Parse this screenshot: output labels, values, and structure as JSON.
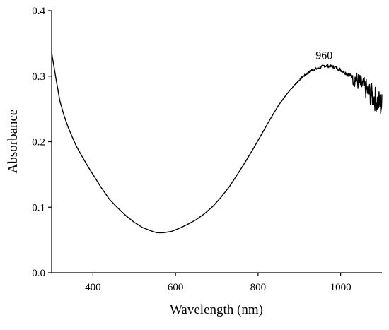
{
  "chart_data": {
    "type": "line",
    "xlabel": "Wavelength (nm)",
    "ylabel": "Absorbance",
    "xlim": [
      300,
      1100
    ],
    "ylim": [
      0.0,
      0.4
    ],
    "x_ticks": [
      400,
      600,
      800,
      1000
    ],
    "x_tick_labels": [
      "400",
      "600",
      "800",
      "1000"
    ],
    "y_ticks": [
      0.0,
      0.1,
      0.2,
      0.3,
      0.4
    ],
    "y_tick_labels": [
      "0.0",
      "0.1",
      "0.2",
      "0.3",
      "0.4"
    ],
    "grid": false,
    "line_color": "#000000",
    "series": [
      {
        "x": [
          300,
          310,
          320,
          330,
          340,
          350,
          360,
          375,
          390,
          400,
          420,
          440,
          460,
          480,
          500,
          520,
          540,
          555,
          570,
          590,
          610,
          630,
          650,
          670,
          690,
          710,
          730,
          750,
          770,
          790,
          810,
          830,
          850,
          870,
          890,
          910,
          930,
          950,
          960,
          975,
          990,
          1005,
          1020,
          1035,
          1050,
          1060,
          1070,
          1080,
          1090,
          1100
        ],
        "y": [
          0.336,
          0.298,
          0.262,
          0.24,
          0.222,
          0.207,
          0.193,
          0.176,
          0.16,
          0.15,
          0.13,
          0.112,
          0.099,
          0.087,
          0.077,
          0.069,
          0.064,
          0.061,
          0.061,
          0.063,
          0.068,
          0.074,
          0.081,
          0.09,
          0.101,
          0.115,
          0.131,
          0.15,
          0.17,
          0.191,
          0.213,
          0.235,
          0.256,
          0.273,
          0.288,
          0.3,
          0.309,
          0.313,
          0.316,
          0.315,
          0.313,
          0.308,
          0.302,
          0.296,
          0.287,
          0.281,
          0.274,
          0.268,
          0.261,
          0.255
        ]
      }
    ],
    "noise_start_x": 1030,
    "annotations": [
      {
        "text": "960",
        "x": 960,
        "y": 0.326
      }
    ]
  }
}
